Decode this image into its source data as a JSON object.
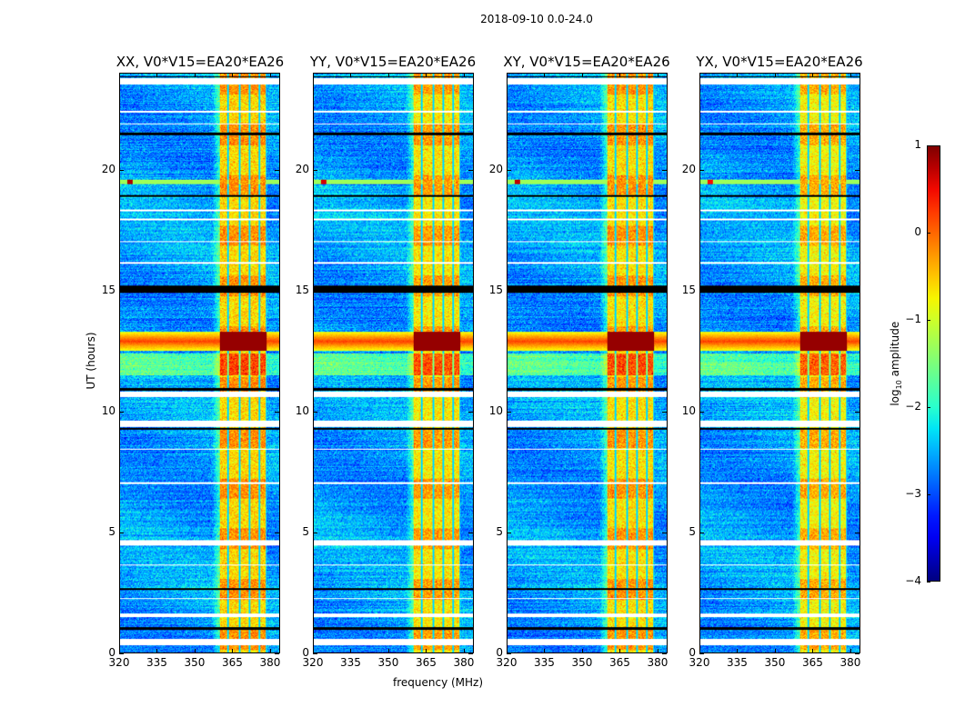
{
  "chart_data": {
    "type": "heatmap",
    "title": "2018-09-10 0.0-24.0",
    "xlabel": "frequency (MHz)",
    "ylabel": "UT (hours)",
    "xlim": [
      320,
      384
    ],
    "ylim": [
      0,
      24
    ],
    "xticks": [
      "320",
      "335",
      "350",
      "365",
      "380"
    ],
    "xtick_values": [
      320,
      335,
      350,
      365,
      380
    ],
    "yticks": [
      "0",
      "5",
      "10",
      "15",
      "20"
    ],
    "ytick_values": [
      0,
      5,
      10,
      15,
      20
    ],
    "colorbar": {
      "label_pre": "log",
      "label_sub": "10",
      "label_post": " amplitude",
      "range": [
        -4,
        1
      ],
      "ticks": [
        "1",
        "0",
        "−1",
        "−2",
        "−3",
        "−4"
      ],
      "tick_values": [
        1,
        0,
        -1,
        -2,
        -3,
        -4
      ],
      "colormap": "jet"
    },
    "panels": [
      {
        "title": "XX, V0*V15=EA20*EA26",
        "rfi": 1.0
      },
      {
        "title": "YY, V0*V15=EA20*EA26",
        "rfi": 0.8
      },
      {
        "title": "XY, V0*V15=EA20*EA26",
        "rfi": 0.9
      },
      {
        "title": "YX, V0*V15=EA20*EA26",
        "rfi": 0.6
      }
    ],
    "features": {
      "background_level": -2.6,
      "rfi_band_mhz": [
        360,
        379
      ],
      "rfi_band_level": -0.6,
      "rfi_channel_lines_mhz": [
        363.5,
        368,
        372,
        376,
        379
      ],
      "bright_time_band_hours": [
        12.5,
        13.3
      ],
      "bright_time_band_level": 0.2,
      "spike_time_hours": 19.5,
      "spike_freq_mhz": 324,
      "flagged_hours": [
        [
          0.3,
          0.55
        ],
        [
          1.45,
          1.6
        ],
        [
          4.45,
          4.65
        ],
        [
          9.35,
          9.6
        ],
        [
          10.6,
          10.8
        ],
        [
          23.55,
          23.8
        ],
        [
          2.2,
          2.25
        ],
        [
          3.6,
          3.65
        ],
        [
          7.0,
          7.05
        ],
        [
          8.4,
          8.45
        ],
        [
          16.1,
          16.2
        ],
        [
          17.0,
          17.05
        ],
        [
          17.9,
          18.0
        ],
        [
          18.3,
          18.35
        ],
        [
          21.9,
          21.95
        ],
        [
          22.4,
          22.45
        ]
      ],
      "dark_hours": [
        [
          0.95,
          1.05
        ],
        [
          2.6,
          2.68
        ],
        [
          9.25,
          9.32
        ],
        [
          10.85,
          10.95
        ],
        [
          14.9,
          15.2
        ],
        [
          18.9,
          18.98
        ],
        [
          21.45,
          21.55
        ],
        [
          23.85,
          23.9
        ]
      ]
    }
  }
}
